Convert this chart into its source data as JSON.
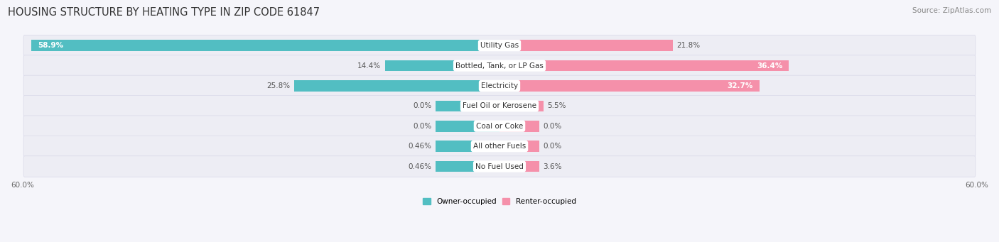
{
  "title": "HOUSING STRUCTURE BY HEATING TYPE IN ZIP CODE 61847",
  "source": "Source: ZipAtlas.com",
  "categories": [
    "Utility Gas",
    "Bottled, Tank, or LP Gas",
    "Electricity",
    "Fuel Oil or Kerosene",
    "Coal or Coke",
    "All other Fuels",
    "No Fuel Used"
  ],
  "owner_values": [
    58.9,
    14.4,
    25.8,
    0.0,
    0.0,
    0.46,
    0.46
  ],
  "renter_values": [
    21.8,
    36.4,
    32.7,
    5.5,
    0.0,
    0.0,
    3.6
  ],
  "owner_color": "#52bec2",
  "renter_color": "#f590aa",
  "owner_label": "Owner-occupied",
  "renter_label": "Renter-occupied",
  "axis_limit": 60.0,
  "title_fontsize": 10.5,
  "source_fontsize": 7.5,
  "bar_label_fontsize": 7.5,
  "category_fontsize": 7.5,
  "axis_label_fontsize": 7.5,
  "owner_value_labels": [
    "58.9%",
    "14.4%",
    "25.8%",
    "0.0%",
    "0.0%",
    "0.46%",
    "0.46%"
  ],
  "renter_value_labels": [
    "21.8%",
    "36.4%",
    "32.7%",
    "5.5%",
    "0.0%",
    "0.0%",
    "3.6%"
  ],
  "owner_label_inside": [
    true,
    false,
    false,
    false,
    false,
    false,
    false
  ],
  "renter_label_inside": [
    false,
    true,
    true,
    false,
    false,
    false,
    false
  ],
  "min_display_owner": 8.0,
  "min_display_renter": 5.0,
  "row_bg_color": "#ededf4",
  "row_gap_color": "#f5f5fa"
}
